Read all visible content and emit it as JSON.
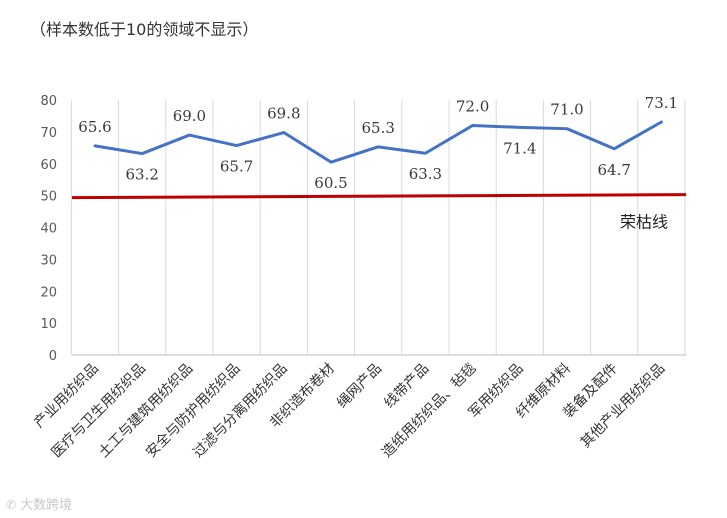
{
  "note": "（样本数低于10的领域不显示）",
  "watermark_text": "大数跨境",
  "chart_data": {
    "type": "line",
    "categories": [
      "产业用纺织品",
      "医疗与卫生用纺织品",
      "土工与建筑用纺织品",
      "安全与防护用纺织品",
      "过滤与分离用纺织品",
      "非织造布卷材",
      "绳网产品",
      "线带产品",
      "造纸用纺织品、毡毯",
      "军用纺织品",
      "纤维原材料",
      "装备及配件",
      "其他产业用纺织品"
    ],
    "series": [
      {
        "values": [
          65.6,
          63.2,
          69.0,
          65.7,
          69.8,
          60.5,
          65.3,
          63.3,
          72.0,
          71.4,
          71.0,
          64.7,
          73.1
        ],
        "labels": [
          "65.6",
          "63.2",
          "69.0",
          "65.7",
          "69.8",
          "60.5",
          "65.3",
          "63.3",
          "72.0",
          "71.4",
          "71.0",
          "64.7",
          "73.1"
        ],
        "label_side": [
          "above",
          "below",
          "above",
          "below",
          "above",
          "below",
          "above",
          "below",
          "above",
          "below",
          "above",
          "below",
          "above"
        ],
        "color": "#4472c4"
      }
    ],
    "reference_line": {
      "name": "荣枯线",
      "value": 50,
      "color": "#c00000"
    },
    "ylim": [
      0,
      80
    ],
    "yticks": [
      0,
      10,
      20,
      30,
      40,
      50,
      60,
      70,
      80
    ],
    "grid": "vertical",
    "xlabel": "",
    "ylabel": "",
    "title": ""
  }
}
